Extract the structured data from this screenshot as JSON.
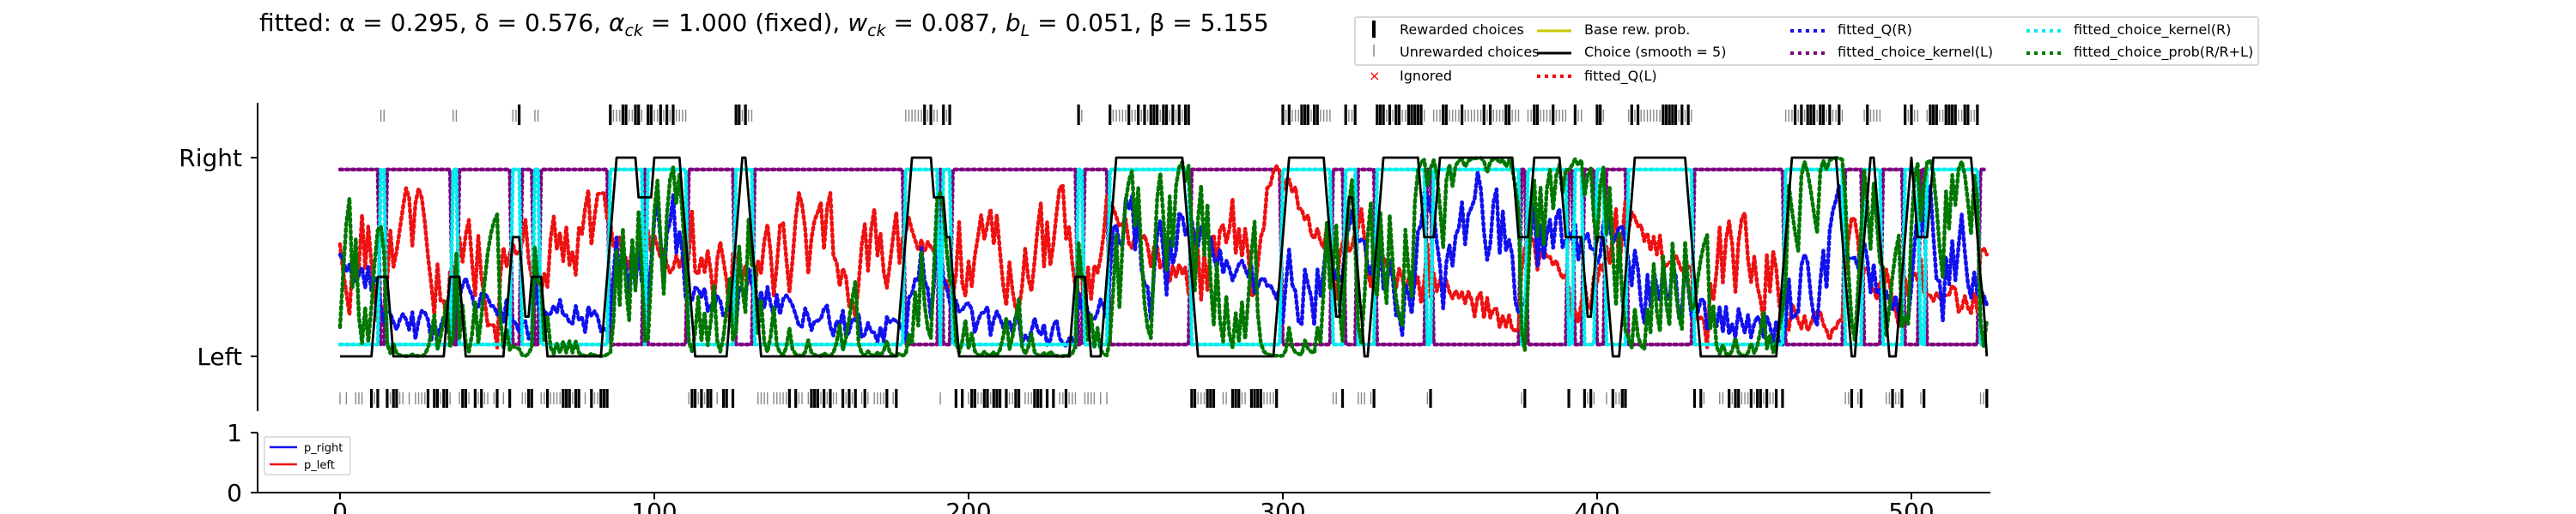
{
  "title": "fitted: α = 0.295, δ = 0.576, α_ck = 1.000 (fixed), w_ck = 0.087, b_L = 0.051, β = 5.155",
  "title_parts": {
    "prefix": "fitted: ",
    "alpha": "α = 0.295, ",
    "delta": "δ = 0.576, ",
    "alpha_ck_sym": "α",
    "alpha_ck_sub": "ck",
    "alpha_ck_val": " = 1.000 (fixed), ",
    "w_ck_sym": "w",
    "w_ck_sub": "ck",
    "w_ck_val": " = 0.087, ",
    "b_L_sym": "b",
    "b_L_sub": "L",
    "b_L_val": " = 0.051, ",
    "beta": "β = 5.155"
  },
  "colors": {
    "rewarded": "#000000",
    "unrewarded": "#888888",
    "ignored": "#ff0000",
    "base_rew": "#c8c800",
    "choice": "#000000",
    "q_l": "#ee1111",
    "q_r": "#1111ee",
    "kernel_l": "#800080",
    "kernel_r": "#00eeee",
    "choice_prob": "#007700",
    "p_right": "#1010ee",
    "p_left": "#ee1010"
  },
  "legend": {
    "rewarded": "Rewarded choices",
    "unrewarded": "Unrewarded choices",
    "ignored": "Ignored",
    "base_rew": "Base rew. prob.",
    "choice": "Choice (smooth = 5)",
    "q_l": "fitted_Q(L)",
    "q_r": "fitted_Q(R)",
    "kernel_l": "fitted_choice_kernel(L)",
    "kernel_r": "fitted_choice_kernel(R)",
    "choice_prob": "fitted_choice_prob(R/R+L)"
  },
  "small_legend": {
    "p_right": "p_right",
    "p_left": "p_left"
  },
  "chart_data": [
    {
      "type": "line",
      "panel": "main",
      "yticks": [
        "Left",
        "Right"
      ],
      "ylim": [
        -0.35,
        1.25
      ],
      "xlim": [
        -27,
        525
      ],
      "n_trials": 525,
      "series": [
        {
          "name": "fitted_Q(L)",
          "style": "dotted",
          "note": "values fluctuate between 0 and 1 across trials"
        },
        {
          "name": "fitted_Q(R)",
          "style": "dotted"
        },
        {
          "name": "fitted_choice_kernel(L)",
          "style": "dotted"
        },
        {
          "name": "fitted_choice_kernel(R)",
          "style": "dotted"
        },
        {
          "name": "fitted_choice_prob(R/R+L)",
          "style": "dotted"
        },
        {
          "name": "Choice (smooth = 5)",
          "style": "solid"
        }
      ],
      "right_choice_blocks": [
        [
          13,
          14
        ],
        [
          36,
          37
        ],
        [
          55,
          57
        ],
        [
          62,
          63
        ],
        [
          86,
          92
        ],
        [
          93,
          96
        ],
        [
          98,
          110
        ],
        [
          126,
          131
        ],
        [
          180,
          190
        ],
        [
          192,
          194
        ],
        [
          235,
          236
        ],
        [
          245,
          270
        ],
        [
          300,
          315
        ],
        [
          320,
          323
        ],
        [
          330,
          345
        ],
        [
          348,
          375
        ],
        [
          378,
          390
        ],
        [
          393,
          395
        ],
        [
          400,
          402
        ],
        [
          410,
          430
        ],
        [
          460,
          478
        ],
        [
          485,
          490
        ],
        [
          498,
          502
        ],
        [
          505,
          521
        ]
      ],
      "left_choice_blocks": [
        [
          0,
          30
        ],
        [
          40,
          46
        ],
        [
          50,
          54
        ],
        [
          70,
          85
        ],
        [
          110,
          120
        ],
        [
          123,
          127
        ],
        [
          133,
          160
        ],
        [
          176,
          192
        ],
        [
          196,
          240
        ],
        [
          275,
          300
        ],
        [
          315,
          320
        ],
        [
          340,
          343
        ],
        [
          358,
          370
        ],
        [
          378,
          383
        ],
        [
          388,
          410
        ],
        [
          428,
          460
        ],
        [
          478,
          490
        ]
      ]
    },
    {
      "type": "line",
      "panel": "base_reward",
      "yticks": [
        "0",
        "1"
      ],
      "ylim": [
        0,
        1
      ],
      "xlim": [
        -27,
        525
      ],
      "xticks": [
        0,
        100,
        200,
        300,
        400,
        500
      ],
      "series": [
        {
          "name": "p_right"
        },
        {
          "name": "p_left"
        }
      ]
    }
  ]
}
